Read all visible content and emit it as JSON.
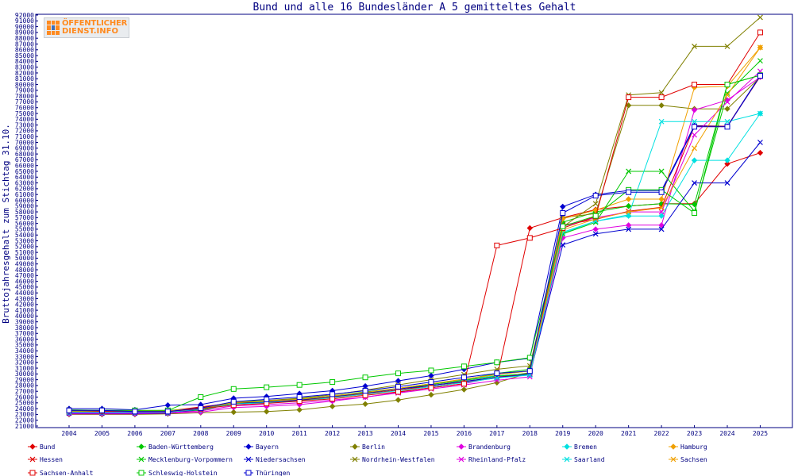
{
  "logo": {
    "line1": "ÖFFENTLICHER",
    "line2": "DIENST.INFO"
  },
  "chart_data": {
    "type": "line",
    "title": "Bund und alle 16 Bundesländer A 5 gemitteltes Gehalt",
    "xlabel": "",
    "ylabel": "Bruttojahresgehalt zum Stichtag 31.10.",
    "ylim": [
      21000,
      92000
    ],
    "ytick_step": 1000,
    "grid": false,
    "legend_position": "bottom",
    "x": [
      "2004",
      "2005",
      "2006",
      "2007",
      "2008",
      "2009",
      "2010",
      "2011",
      "2012",
      "2013",
      "2014",
      "2015",
      "2016",
      "2017",
      "2018",
      "2019",
      "2020",
      "2021",
      "2022",
      "2023",
      "2024",
      "2025"
    ],
    "series": [
      {
        "name": "Bund",
        "color": "#e00000",
        "marker": "diamond",
        "values": [
          23600,
          23500,
          23500,
          23600,
          24300,
          25000,
          25200,
          25500,
          26000,
          26600,
          27200,
          27800,
          28600,
          29300,
          55200,
          57000,
          58400,
          59000,
          59400,
          59400,
          66300,
          68200
        ]
      },
      {
        "name": "Baden-Württemberg",
        "color": "#00c800",
        "marker": "diamond",
        "values": [
          23800,
          23700,
          23600,
          23700,
          24000,
          25200,
          25400,
          25700,
          26200,
          26900,
          27500,
          28300,
          29000,
          30100,
          30800,
          56200,
          58000,
          59000,
          59400,
          59300,
          80000,
          81600
        ]
      },
      {
        "name": "Bayern",
        "color": "#0000d0",
        "marker": "diamond",
        "values": [
          24000,
          24000,
          23800,
          24600,
          24700,
          25800,
          26100,
          26600,
          27100,
          27900,
          28800,
          29700,
          30800,
          32000,
          32700,
          58900,
          61000,
          61700,
          61700,
          72900,
          72800,
          81600
        ]
      },
      {
        "name": "Berlin",
        "color": "#808000",
        "marker": "diamond",
        "values": [
          23000,
          23000,
          23000,
          23100,
          23300,
          23400,
          23500,
          23800,
          24400,
          24800,
          25500,
          26400,
          27300,
          28500,
          30200,
          57000,
          57700,
          76400,
          76400,
          75800,
          75800,
          81300
        ]
      },
      {
        "name": "Brandenburg",
        "color": "#e000e0",
        "marker": "diamond",
        "values": [
          23100,
          23100,
          23100,
          23200,
          23400,
          24200,
          24400,
          24700,
          25300,
          26000,
          26800,
          27600,
          28300,
          29500,
          30000,
          53500,
          55000,
          55700,
          55700,
          75600,
          77300,
          81300
        ]
      },
      {
        "name": "Bremen",
        "color": "#00e0e0",
        "marker": "diamond",
        "values": [
          23300,
          23300,
          23300,
          23300,
          23700,
          24900,
          25200,
          25500,
          26100,
          26700,
          27400,
          28200,
          29000,
          29700,
          30000,
          54300,
          56400,
          57300,
          57300,
          66900,
          66900,
          75000
        ]
      },
      {
        "name": "Hamburg",
        "color": "#f0a000",
        "marker": "diamond",
        "values": [
          23500,
          23500,
          23500,
          23500,
          24000,
          25000,
          25300,
          25600,
          26100,
          26800,
          27500,
          28300,
          29100,
          29900,
          30500,
          56800,
          58300,
          60200,
          60200,
          79500,
          79700,
          86400
        ]
      },
      {
        "name": "Hessen",
        "color": "#e00000",
        "marker": "x",
        "values": [
          23600,
          23500,
          23500,
          23500,
          24200,
          24800,
          25000,
          25400,
          25900,
          26500,
          27200,
          28000,
          28700,
          29400,
          30200,
          55700,
          56700,
          58100,
          58800,
          72800,
          72800,
          81400
        ]
      },
      {
        "name": "Mecklenburg-Vorpommern",
        "color": "#00c800",
        "marker": "x",
        "values": [
          23400,
          23400,
          23300,
          23300,
          23700,
          24900,
          25100,
          25500,
          26100,
          26700,
          27400,
          28200,
          28900,
          29600,
          30100,
          54200,
          56200,
          65000,
          65000,
          58100,
          78500,
          84100
        ]
      },
      {
        "name": "Niedersachsen",
        "color": "#0000d0",
        "marker": "x",
        "values": [
          23200,
          23200,
          23200,
          23200,
          23900,
          24900,
          25100,
          25500,
          26100,
          26700,
          27400,
          28000,
          28700,
          29400,
          29900,
          52300,
          54200,
          55000,
          55000,
          63000,
          63000,
          70000
        ]
      },
      {
        "name": "Nordrhein-Westfalen",
        "color": "#808000",
        "marker": "x",
        "values": [
          23500,
          23400,
          23400,
          23400,
          24000,
          24900,
          25400,
          25800,
          26400,
          27200,
          28100,
          29000,
          29900,
          30800,
          31400,
          55400,
          59400,
          78200,
          78600,
          86600,
          86600,
          91600
        ]
      },
      {
        "name": "Rheinland-Pfalz",
        "color": "#e000e0",
        "marker": "x",
        "values": [
          23300,
          23300,
          23300,
          23300,
          23600,
          24500,
          24700,
          25000,
          25500,
          26000,
          26700,
          27400,
          28100,
          28900,
          29500,
          55500,
          57000,
          58000,
          58000,
          71300,
          77000,
          82300
        ]
      },
      {
        "name": "Saarland",
        "color": "#00e0e0",
        "marker": "x",
        "values": [
          23400,
          23400,
          23400,
          23400,
          23900,
          24800,
          25000,
          25300,
          25900,
          26500,
          27100,
          27800,
          28500,
          29300,
          29800,
          54500,
          56400,
          57500,
          73600,
          73600,
          73600,
          75000
        ]
      },
      {
        "name": "Sachsen",
        "color": "#f0a000",
        "marker": "x",
        "values": [
          23600,
          23600,
          23600,
          23600,
          24100,
          25100,
          25300,
          25600,
          26200,
          26800,
          27500,
          28300,
          29100,
          29900,
          30500,
          54900,
          56800,
          58000,
          58700,
          69000,
          78200,
          86400
        ]
      },
      {
        "name": "Sachsen-Anhalt",
        "color": "#e00000",
        "marker": "square",
        "values": [
          23700,
          23600,
          23500,
          23500,
          24000,
          24600,
          24900,
          25300,
          25700,
          26300,
          26900,
          27600,
          28300,
          52200,
          53500,
          55200,
          57200,
          77800,
          77800,
          80000,
          80000,
          89000
        ]
      },
      {
        "name": "Schleswig-Holstein",
        "color": "#00c800",
        "marker": "square",
        "values": [
          23700,
          23700,
          23700,
          23700,
          26000,
          27400,
          27700,
          28100,
          28600,
          29400,
          30100,
          30600,
          31300,
          32000,
          32800,
          55500,
          57300,
          61800,
          61800,
          57800,
          80000,
          81600
        ]
      },
      {
        "name": "Thüringen",
        "color": "#0000d0",
        "marker": "square",
        "values": [
          23700,
          23700,
          23500,
          23500,
          24100,
          25200,
          25600,
          26000,
          26500,
          27100,
          27800,
          28600,
          29400,
          30100,
          30500,
          57800,
          60800,
          61400,
          61400,
          72700,
          72700,
          81500
        ]
      }
    ]
  }
}
